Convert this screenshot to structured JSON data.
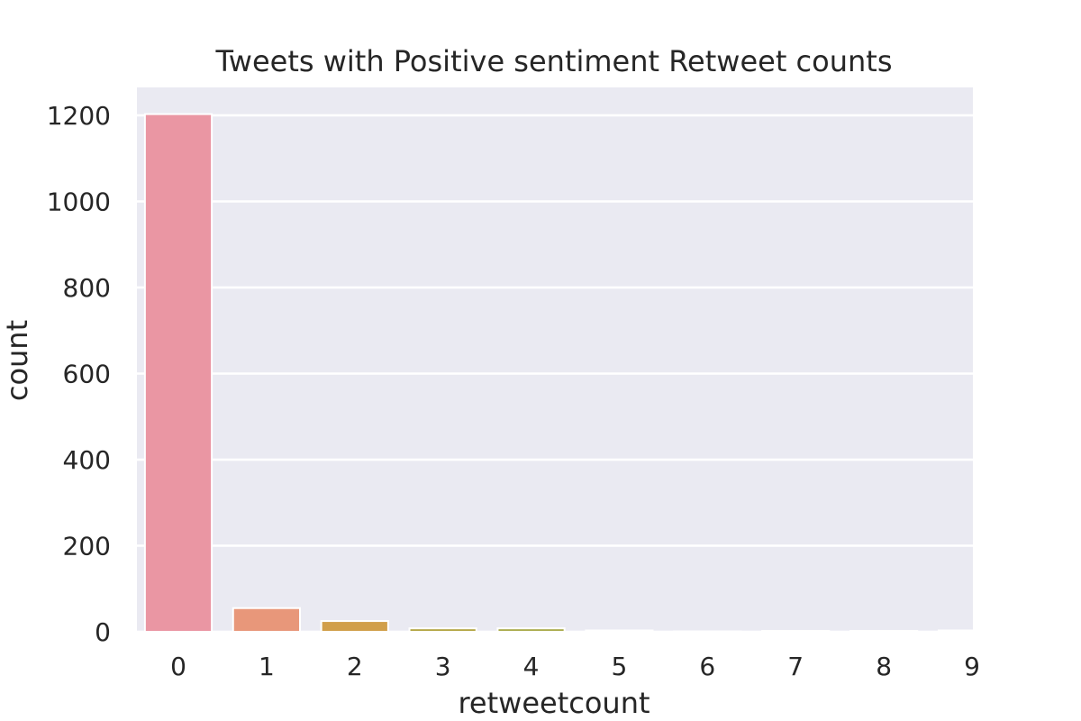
{
  "chart_data": {
    "type": "bar",
    "title": "Tweets with Positive sentiment Retweet counts",
    "xlabel": "retweetcount",
    "ylabel": "count",
    "categories": [
      "0",
      "1",
      "2",
      "3",
      "4",
      "5",
      "6",
      "7",
      "8",
      "9"
    ],
    "values": [
      1203,
      55,
      25,
      8,
      8,
      3,
      1,
      2,
      2,
      3
    ],
    "ylim": [
      0,
      1265
    ],
    "yticks": [
      0,
      200,
      400,
      600,
      800,
      1000,
      1200
    ],
    "ytick_labels": [
      "0",
      "200",
      "400",
      "600",
      "800",
      "1000",
      "1200"
    ],
    "grid": true,
    "colors": {
      "background": "#EAEAF2",
      "grid": "#FFFFFF",
      "bars": [
        "#EA96A3",
        "#E8977A",
        "#D19F4A",
        "#B2A542",
        "#A9AA4A",
        "#89B047",
        "#4AB47A",
        "#4CAFA0",
        "#4DA9B8",
        "#56A7CF"
      ]
    }
  }
}
